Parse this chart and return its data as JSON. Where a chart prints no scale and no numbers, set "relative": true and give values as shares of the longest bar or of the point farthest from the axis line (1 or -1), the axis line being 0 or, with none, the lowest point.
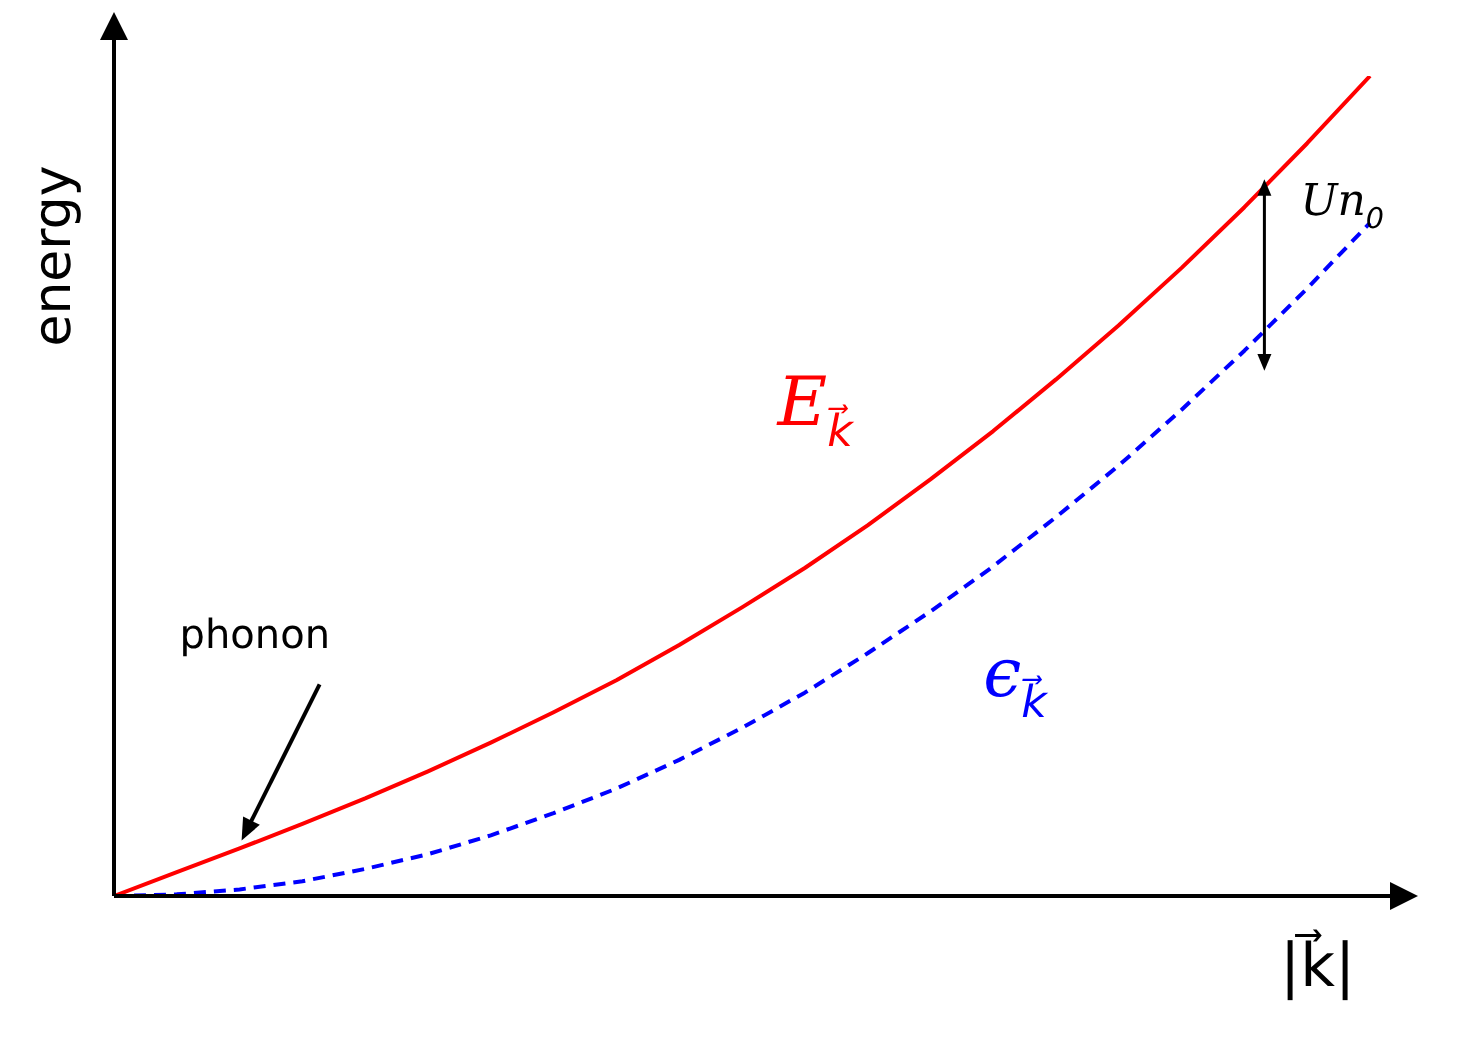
{
  "chart_data": {
    "type": "line",
    "relative": true,
    "xlabel": "|k⃗|",
    "ylabel": "energy",
    "categories": [
      null,
      null,
      null,
      null,
      null,
      null,
      null,
      null,
      null,
      null,
      null,
      null,
      null,
      null,
      null,
      null,
      null,
      null,
      null,
      null,
      null
    ],
    "series": [
      {
        "name": "E$_{k⃗}$",
        "color": "#ff0000",
        "line_style": "solid",
        "values": [
          0,
          0.029,
          0.058,
          0.088,
          0.119,
          0.152,
          0.187,
          0.224,
          0.263,
          0.306,
          0.352,
          0.4,
          0.452,
          0.508,
          0.567,
          0.63,
          0.696,
          0.766,
          0.84,
          0.918,
          1.0
        ]
      },
      {
        "name": "ϵ$_{k⃗}$",
        "color": "#0000ff",
        "line_style": "dashed",
        "values": [
          0,
          0.002,
          0.008,
          0.018,
          0.033,
          0.051,
          0.074,
          0.101,
          0.131,
          0.166,
          0.205,
          0.248,
          0.296,
          0.347,
          0.402,
          0.462,
          0.525,
          0.593,
          0.665,
          0.741,
          0.821
        ]
      }
    ],
    "annotations": [
      "phonon",
      "Un$_{0}$"
    ],
    "marker": "none",
    "legend": false,
    "grid": false,
    "tick_labels": false
  }
}
